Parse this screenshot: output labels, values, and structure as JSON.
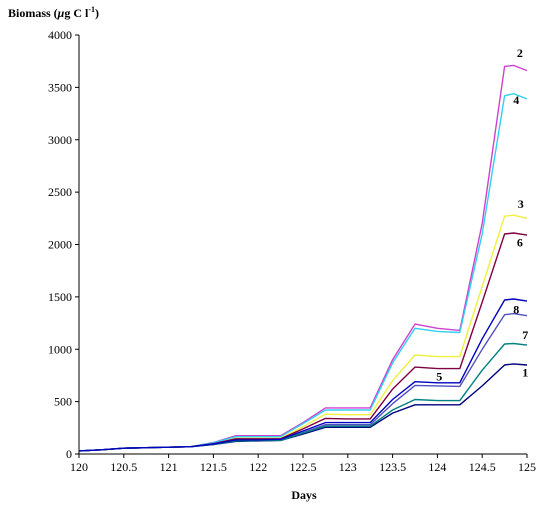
{
  "chart_data": {
    "type": "line",
    "title": "",
    "ylabel_prefix": "Biomass (",
    "ylabel_mu": "μ",
    "ylabel_mid": "g C l",
    "ylabel_sup": "-1",
    "ylabel_suffix": ")",
    "xlabel": "Days",
    "xlim": [
      120,
      125
    ],
    "ylim": [
      0,
      4000
    ],
    "xticks": [
      120,
      120.5,
      121,
      121.5,
      122,
      122.5,
      123,
      123.5,
      124,
      124.5,
      125
    ],
    "xtick_labels": [
      "120",
      "120.5",
      "121",
      "121.5",
      "122",
      "122.5",
      "123",
      "123.5",
      "124",
      "124.5",
      "125"
    ],
    "yticks": [
      0,
      500,
      1000,
      1500,
      2000,
      2500,
      3000,
      3500,
      4000
    ],
    "ytick_labels": [
      "0",
      "500",
      "1000",
      "1500",
      "2000",
      "2500",
      "3000",
      "3500",
      "4000"
    ],
    "grid": false,
    "legend": "none",
    "x": [
      120.0,
      120.25,
      120.5,
      120.75,
      121.0,
      121.25,
      121.5,
      121.75,
      122.0,
      122.25,
      122.5,
      122.75,
      123.0,
      123.25,
      123.5,
      123.75,
      124.0,
      124.25,
      124.5,
      124.75,
      124.85,
      125.0
    ],
    "series": [
      {
        "name": "1",
        "color": "#000080",
        "values": [
          30,
          40,
          55,
          60,
          65,
          70,
          90,
          120,
          125,
          130,
          190,
          255,
          255,
          255,
          390,
          470,
          470,
          470,
          650,
          850,
          860,
          850
        ]
      },
      {
        "name": "2",
        "color": "#d040d0",
        "values": [
          30,
          40,
          55,
          60,
          65,
          70,
          110,
          175,
          175,
          175,
          300,
          440,
          440,
          440,
          900,
          1240,
          1200,
          1180,
          2200,
          3700,
          3710,
          3660
        ]
      },
      {
        "name": "3",
        "color": "#f0f040",
        "values": [
          30,
          40,
          55,
          60,
          65,
          70,
          100,
          150,
          150,
          150,
          260,
          380,
          375,
          375,
          700,
          945,
          930,
          930,
          1600,
          2270,
          2280,
          2250
        ]
      },
      {
        "name": "4",
        "color": "#30d0f0",
        "values": [
          30,
          40,
          55,
          60,
          65,
          70,
          108,
          165,
          165,
          165,
          290,
          420,
          420,
          420,
          870,
          1200,
          1170,
          1160,
          2100,
          3420,
          3440,
          3390
        ]
      },
      {
        "name": "5",
        "color": "#5050c0",
        "values": [
          30,
          40,
          55,
          60,
          65,
          70,
          93,
          130,
          130,
          135,
          205,
          280,
          280,
          280,
          480,
          655,
          650,
          645,
          1000,
          1330,
          1340,
          1320
        ]
      },
      {
        "name": "6",
        "color": "#800040",
        "values": [
          30,
          40,
          55,
          60,
          65,
          70,
          98,
          145,
          145,
          145,
          240,
          340,
          335,
          335,
          620,
          830,
          815,
          815,
          1450,
          2100,
          2110,
          2090
        ]
      },
      {
        "name": "7",
        "color": "#008080",
        "values": [
          30,
          40,
          55,
          60,
          65,
          70,
          92,
          125,
          128,
          130,
          200,
          265,
          265,
          265,
          420,
          520,
          510,
          510,
          800,
          1050,
          1055,
          1040
        ]
      },
      {
        "name": "8",
        "color": "#0000c0",
        "values": [
          30,
          40,
          55,
          60,
          65,
          70,
          95,
          135,
          135,
          140,
          220,
          300,
          300,
          300,
          520,
          690,
          680,
          680,
          1100,
          1470,
          1480,
          1460
        ]
      }
    ],
    "annotations": [
      {
        "text": "1",
        "x": 124.98,
        "y": 740
      },
      {
        "text": "2",
        "x": 124.92,
        "y": 3790
      },
      {
        "text": "3",
        "x": 124.93,
        "y": 2350
      },
      {
        "text": "4",
        "x": 124.88,
        "y": 3340
      },
      {
        "text": "5",
        "x": 124.02,
        "y": 700
      },
      {
        "text": "6",
        "x": 124.92,
        "y": 1980
      },
      {
        "text": "7",
        "x": 124.98,
        "y": 1100
      },
      {
        "text": "8",
        "x": 124.88,
        "y": 1340
      }
    ]
  }
}
